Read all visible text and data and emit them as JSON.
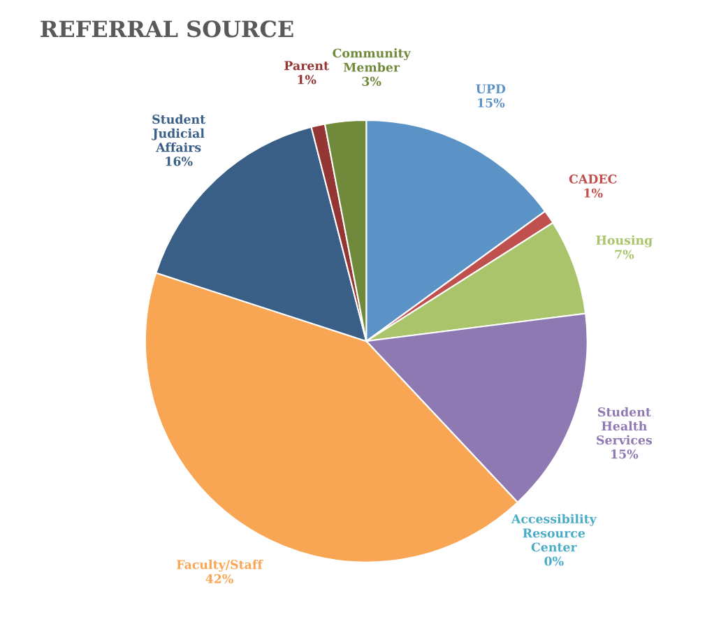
{
  "chart_data": {
    "type": "pie",
    "title": "REFERRAL SOURCE",
    "categories": [
      "UPD",
      "CADEC",
      "Housing",
      "Student Health Services",
      "Accessibility Resource Center",
      "Faculty/Staff",
      "Student Judicial Affairs",
      "Parent",
      "Community Member"
    ],
    "values": [
      15,
      1,
      7,
      15,
      0,
      42,
      16,
      1,
      3
    ],
    "colors": [
      "#5b93c7",
      "#c0504d",
      "#a9c46b",
      "#8f79b2",
      "#4bacc6",
      "#f8a654",
      "#3a5f87",
      "#943734",
      "#71893b"
    ],
    "value_labels": [
      "15%",
      "1%",
      "7%",
      "15%",
      "0%",
      "42%",
      "16%",
      "1%",
      "3%"
    ],
    "legend": false
  }
}
